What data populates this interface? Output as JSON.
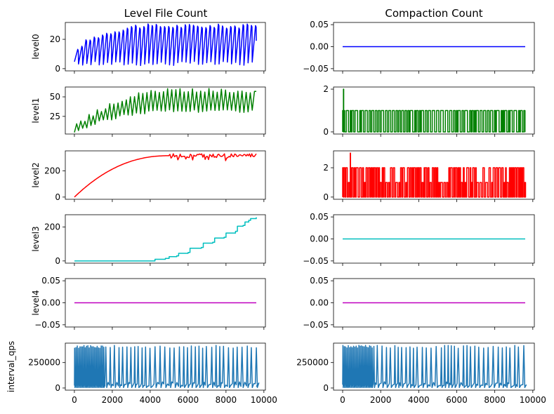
{
  "figure": {
    "left_title": "Level File Count",
    "right_title": "Compaction Count"
  },
  "chart_data": [
    {
      "id": "level0_files",
      "type": "line",
      "title": "Level File Count",
      "ylabel": "level0",
      "color": "#0000ff",
      "xlim": [
        -480,
        10080
      ],
      "ylim": [
        -1.5,
        31.5
      ],
      "yticks": [
        0,
        20
      ],
      "ytick_labels": [
        "0",
        "20"
      ],
      "xticks": [
        0,
        2000,
        4000,
        6000,
        8000,
        10000
      ],
      "show_xticklabels": false,
      "series": [
        {
          "pattern": "sawtooth",
          "x_start": 0,
          "x_end": 9600,
          "cycles": 44,
          "ramp_start": [
            0,
            10
          ],
          "ramp_end": [
            8,
            14
          ],
          "peak_start": 12,
          "peak_end": 29,
          "x_ramp": [
            0,
            3000
          ],
          "trough": [
            2,
            5
          ]
        }
      ]
    },
    {
      "id": "compactions_level0",
      "type": "line",
      "title": "Compaction Count",
      "ylabel": "",
      "color": "#0000ff",
      "xlim": [
        -480,
        10080
      ],
      "ylim": [
        -0.055,
        0.055
      ],
      "yticks": [
        -0.05,
        0,
        0.05
      ],
      "ytick_labels": [
        "−0.05",
        "0.00",
        "0.05"
      ],
      "xticks": [
        0,
        2000,
        4000,
        6000,
        8000,
        10000
      ],
      "show_xticklabels": false,
      "series": [
        {
          "pattern": "constant",
          "x_start": 0,
          "x_end": 9600,
          "value": 0
        }
      ]
    },
    {
      "id": "level1_files",
      "type": "line",
      "title": "",
      "ylabel": "level1",
      "color": "#008000",
      "xlim": [
        -480,
        10080
      ],
      "ylim": [
        2.4,
        62.6
      ],
      "yticks": [
        25,
        50
      ],
      "ytick_labels": [
        "25",
        "50"
      ],
      "xticks": [
        0,
        2000,
        4000,
        6000,
        8000,
        10000
      ],
      "show_xticklabels": false,
      "series": [
        {
          "pattern": "zigzag",
          "x_start": 0,
          "x_end": 9600,
          "cycles": 44,
          "low_start": 5,
          "low_end": 32,
          "high_start": 14,
          "high_end": 58,
          "x_ramp": [
            0,
            5000
          ]
        }
      ]
    },
    {
      "id": "compactions_level1",
      "type": "line",
      "title": "",
      "ylabel": "",
      "color": "#008000",
      "xlim": [
        -480,
        10080
      ],
      "ylim": [
        -0.1,
        2.1
      ],
      "yticks": [
        0,
        2
      ],
      "ytick_labels": [
        "0",
        "2"
      ],
      "xticks": [
        0,
        2000,
        4000,
        6000,
        8000,
        10000
      ],
      "show_xticklabels": false,
      "series": [
        {
          "pattern": "square",
          "x_start": 0,
          "x_end": 9600,
          "first_x": 0,
          "period": 220,
          "high": 1,
          "low": 0,
          "spike": [
            {
              "x": 40,
              "y": 2
            }
          ]
        }
      ]
    },
    {
      "id": "level2_files",
      "type": "line",
      "title": "",
      "ylabel": "level2",
      "color": "#ff0000",
      "xlim": [
        -480,
        10080
      ],
      "ylim": [
        -16.75,
        351.75
      ],
      "yticks": [
        0,
        200
      ],
      "ytick_labels": [
        "0",
        "200"
      ],
      "xticks": [
        0,
        2000,
        4000,
        6000,
        8000,
        10000
      ],
      "show_xticklabels": false,
      "series": [
        {
          "pattern": "smooth_growth",
          "x_start": 0,
          "x_end": 9600,
          "plateau": 315,
          "x_plateau": 5000,
          "jitter": 15
        }
      ]
    },
    {
      "id": "compactions_level2",
      "type": "line",
      "title": "",
      "ylabel": "",
      "color": "#ff0000",
      "xlim": [
        -480,
        10080
      ],
      "ylim": [
        -0.15,
        3.15
      ],
      "yticks": [
        0,
        2
      ],
      "ytick_labels": [
        "0",
        "2"
      ],
      "xticks": [
        0,
        2000,
        4000,
        6000,
        8000,
        10000
      ],
      "show_xticklabels": false,
      "series": [
        {
          "pattern": "square",
          "x_start": 0,
          "x_end": 9600,
          "first_x": 0,
          "period": 150,
          "high": 2,
          "low": 0,
          "mid": 1,
          "spike": [
            {
              "x": 400,
              "y": 3
            }
          ]
        }
      ]
    },
    {
      "id": "level3_files",
      "type": "line",
      "title": "",
      "ylabel": "level3",
      "color": "#00bfbf",
      "xlim": [
        -480,
        10080
      ],
      "ylim": [
        -13,
        273
      ],
      "yticks": [
        0,
        200
      ],
      "ytick_labels": [
        "0",
        "200"
      ],
      "xticks": [
        0,
        2000,
        4000,
        6000,
        8000,
        10000
      ],
      "show_xticklabels": false,
      "series": [
        {
          "pattern": "steps",
          "points": [
            [
              0,
              0
            ],
            [
              4200,
              0
            ],
            [
              4250,
              10
            ],
            [
              4800,
              15
            ],
            [
              5000,
              25
            ],
            [
              5400,
              30
            ],
            [
              5500,
              45
            ],
            [
              6000,
              50
            ],
            [
              6100,
              75
            ],
            [
              6700,
              80
            ],
            [
              6800,
              105
            ],
            [
              7300,
              110
            ],
            [
              7400,
              135
            ],
            [
              7900,
              140
            ],
            [
              8000,
              165
            ],
            [
              8500,
              175
            ],
            [
              8600,
              205
            ],
            [
              8900,
              210
            ],
            [
              9000,
              230
            ],
            [
              9200,
              240
            ],
            [
              9300,
              250
            ],
            [
              9600,
              258
            ]
          ]
        }
      ]
    },
    {
      "id": "compactions_level3",
      "type": "line",
      "title": "",
      "ylabel": "",
      "color": "#00bfbf",
      "xlim": [
        -480,
        10080
      ],
      "ylim": [
        -0.055,
        0.055
      ],
      "yticks": [
        -0.05,
        0,
        0.05
      ],
      "ytick_labels": [
        "−0.05",
        "0.00",
        "0.05"
      ],
      "xticks": [
        0,
        2000,
        4000,
        6000,
        8000,
        10000
      ],
      "show_xticklabels": false,
      "series": [
        {
          "pattern": "constant",
          "x_start": 0,
          "x_end": 9600,
          "value": 0
        }
      ]
    },
    {
      "id": "level4_files",
      "type": "line",
      "title": "",
      "ylabel": "level4",
      "color": "#bf00bf",
      "xlim": [
        -480,
        10080
      ],
      "ylim": [
        -0.055,
        0.055
      ],
      "yticks": [
        -0.05,
        0,
        0.05
      ],
      "ytick_labels": [
        "−0.05",
        "0.00",
        "0.05"
      ],
      "xticks": [
        0,
        2000,
        4000,
        6000,
        8000,
        10000
      ],
      "show_xticklabels": false,
      "series": [
        {
          "pattern": "constant",
          "x_start": 0,
          "x_end": 9600,
          "value": 0
        }
      ]
    },
    {
      "id": "compactions_level4",
      "type": "line",
      "title": "",
      "ylabel": "",
      "color": "#bf00bf",
      "xlim": [
        -480,
        10080
      ],
      "ylim": [
        -0.055,
        0.055
      ],
      "yticks": [
        -0.05,
        0,
        0.05
      ],
      "ytick_labels": [
        "−0.05",
        "0.00",
        "0.05"
      ],
      "xticks": [
        0,
        2000,
        4000,
        6000,
        8000,
        10000
      ],
      "show_xticklabels": false,
      "series": [
        {
          "pattern": "constant",
          "x_start": 0,
          "x_end": 9600,
          "value": 0
        }
      ]
    },
    {
      "id": "interval_qps_left",
      "type": "line",
      "title": "",
      "ylabel": "interval_qps",
      "color": "#1f77b4",
      "xlim": [
        -480,
        10080
      ],
      "ylim": [
        -21000,
        441000
      ],
      "yticks": [
        0,
        250000
      ],
      "ytick_labels": [
        "0",
        "250000"
      ],
      "xticks": [
        0,
        2000,
        4000,
        6000,
        8000,
        10000
      ],
      "xtick_labels": [
        "0",
        "2000",
        "4000",
        "6000",
        "8000",
        "10000"
      ],
      "show_xticklabels": true,
      "series": [
        {
          "pattern": "spikes",
          "x_start": 0,
          "x_end": 9600,
          "dense_until": 1600,
          "dense_period": 70,
          "sparse_period": 230,
          "peak": 420000,
          "base": 15000,
          "noise": 35000
        }
      ]
    },
    {
      "id": "interval_qps_right",
      "type": "line",
      "title": "",
      "ylabel": "",
      "color": "#1f77b4",
      "xlim": [
        -480,
        10080
      ],
      "ylim": [
        -21000,
        441000
      ],
      "yticks": [
        0,
        250000
      ],
      "ytick_labels": [
        "0",
        "250000"
      ],
      "xticks": [
        0,
        2000,
        4000,
        6000,
        8000,
        10000
      ],
      "xtick_labels": [
        "0",
        "2000",
        "4000",
        "6000",
        "8000",
        "10000"
      ],
      "show_xticklabels": true,
      "series": [
        {
          "pattern": "spikes",
          "x_start": 0,
          "x_end": 9600,
          "dense_until": 1600,
          "dense_period": 70,
          "sparse_period": 230,
          "peak": 420000,
          "base": 15000,
          "noise": 35000
        }
      ]
    }
  ]
}
